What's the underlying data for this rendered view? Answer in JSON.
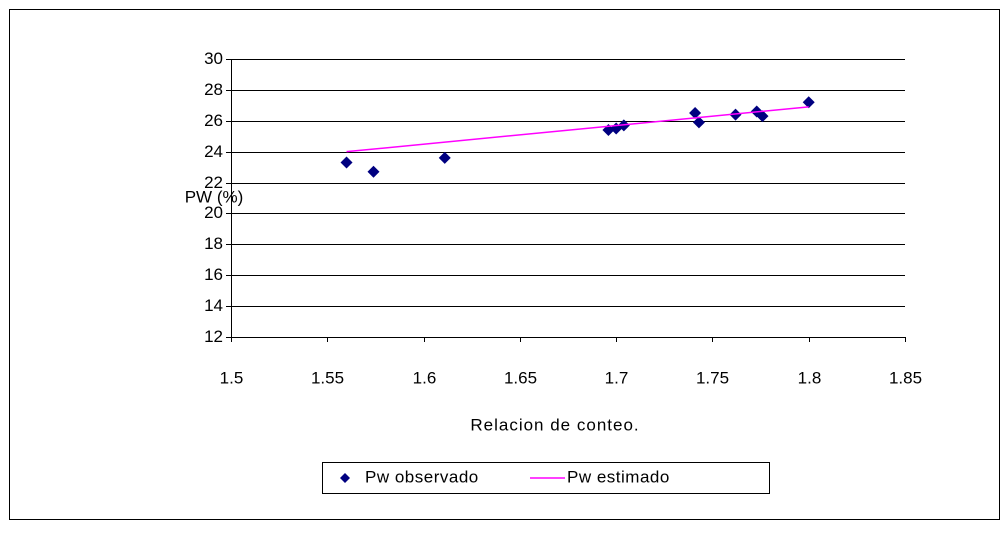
{
  "chart_data": {
    "type": "scatter",
    "xlabel": "Relacion de conteo.",
    "ylabel": "PW (%)",
    "xlim": [
      1.5,
      1.85
    ],
    "xticks": [
      1.5,
      1.55,
      1.6,
      1.65,
      1.7,
      1.75,
      1.8,
      1.85
    ],
    "ylim": [
      12,
      30
    ],
    "yticks": [
      12,
      14,
      16,
      18,
      20,
      22,
      24,
      26,
      28,
      30
    ],
    "grid": true,
    "legend": "bottom",
    "series": [
      {
        "name": "Pw observado",
        "color": "#000080",
        "style": "marker",
        "x": [
          1.56,
          1.574,
          1.611,
          1.696,
          1.7,
          1.704,
          1.741,
          1.743,
          1.762,
          1.773,
          1.776,
          1.8
        ],
        "values": [
          23.3,
          22.7,
          23.6,
          25.4,
          25.5,
          25.7,
          26.5,
          25.9,
          26.4,
          26.6,
          26.3,
          27.2
        ]
      },
      {
        "name": "Pw estimado",
        "color": "#ff00ff",
        "style": "line",
        "x": [
          1.56,
          1.8
        ],
        "values": [
          24.0,
          26.9
        ]
      }
    ]
  }
}
